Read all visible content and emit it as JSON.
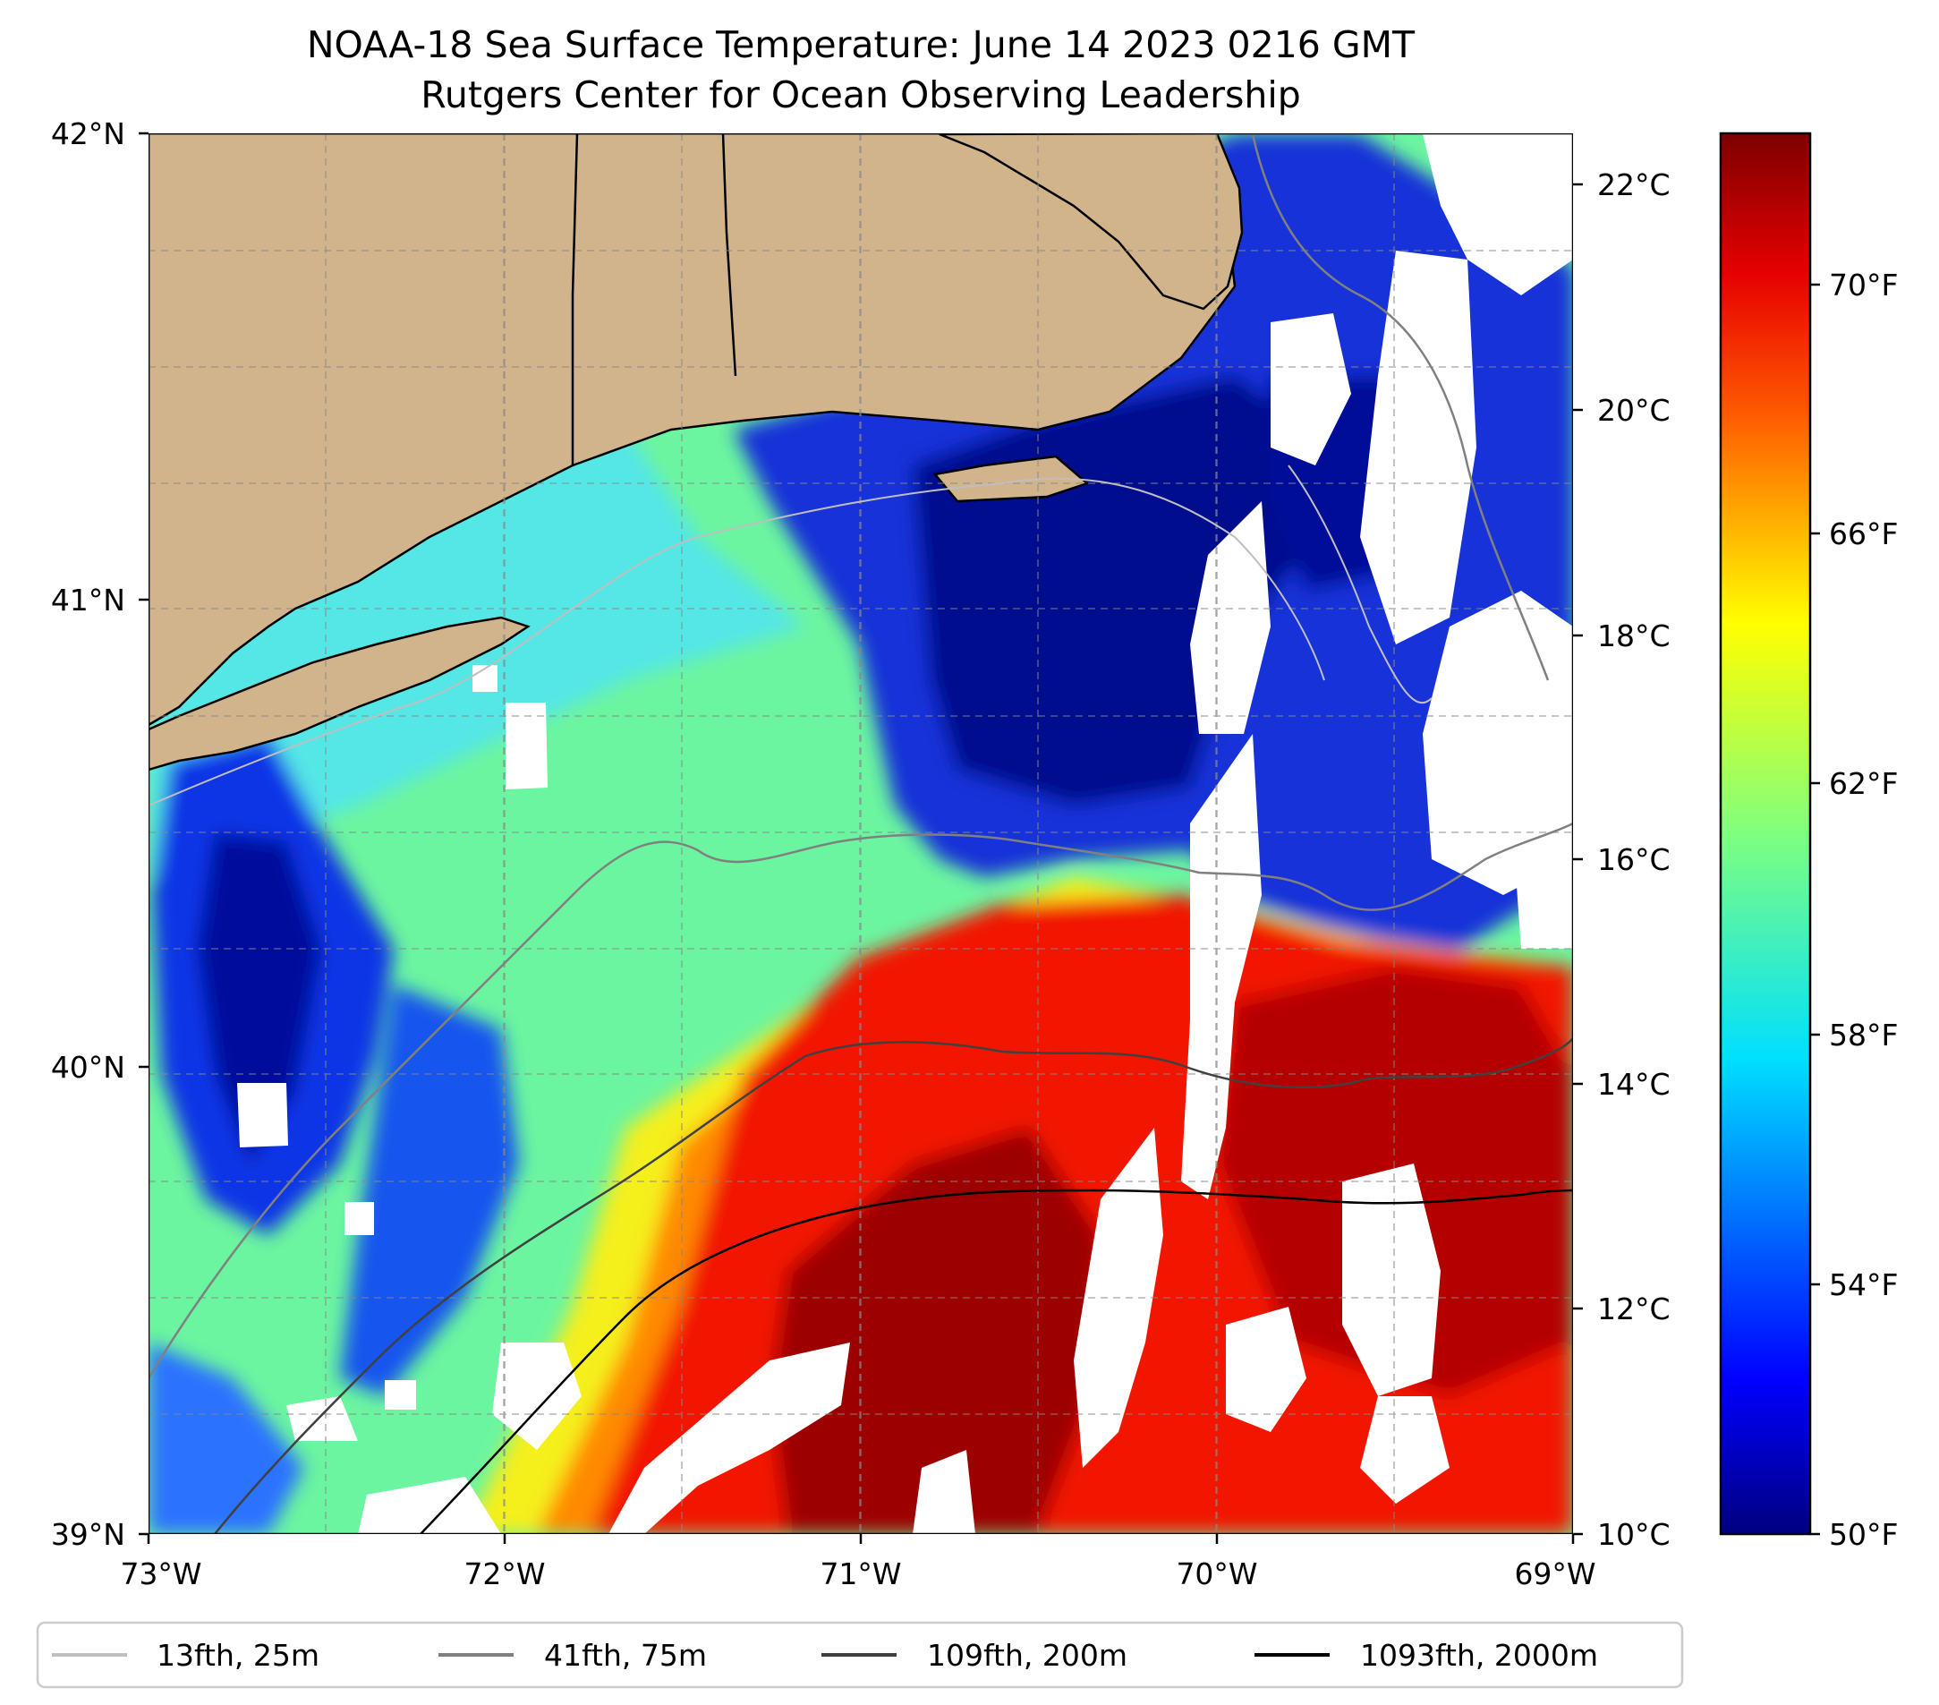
{
  "figure": {
    "title": "NOAA-18 Sea Surface Temperature: June 14 2023 0216 GMT",
    "subtitle": "Rutgers Center for Ocean Observing Leadership"
  },
  "map": {
    "extent": {
      "lon_min": -73,
      "lon_max": -69,
      "lat_min": 39,
      "lat_max": 42
    },
    "x_ticks": [
      "73°W",
      "72°W",
      "71°W",
      "70°W",
      "69°W"
    ],
    "y_ticks": [
      "42°N",
      "41°N",
      "40°N",
      "39°N"
    ],
    "land_color": "#d2b48c",
    "gridlines": "dashed gray, every 0.25°"
  },
  "colorbar": {
    "colormap": "jet",
    "celsius_ticks": [
      "22°C",
      "20°C",
      "18°C",
      "16°C",
      "14°C",
      "12°C",
      "10°C"
    ],
    "fahrenheit_ticks": [
      "70°F",
      "66°F",
      "62°F",
      "58°F",
      "54°F",
      "50°F"
    ],
    "range_f": [
      50,
      72.5
    ],
    "colors": [
      "#00007f",
      "#0000ff",
      "#007fff",
      "#00ffff",
      "#7fff7f",
      "#ffff00",
      "#ff7f00",
      "#ff0000",
      "#7f0000"
    ]
  },
  "legend": {
    "items": [
      {
        "label": "13fth, 25m",
        "color": "#bfbfbf"
      },
      {
        "label": "41fth, 75m",
        "color": "#808080"
      },
      {
        "label": "109fth, 200m",
        "color": "#404040"
      },
      {
        "label": "1093fth, 2000m",
        "color": "#000000"
      }
    ]
  }
}
